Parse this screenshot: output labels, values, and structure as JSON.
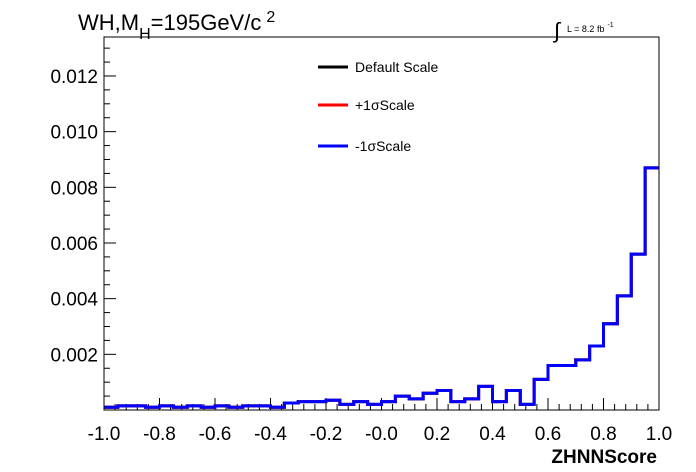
{
  "title": {
    "main": "WH,M",
    "sub": "H",
    "rest": "=195GeV/c",
    "sup": "2"
  },
  "lumi": {
    "symbol": "∫",
    "text": "L = 8.2 fb",
    "sup": "-1"
  },
  "colors": {
    "default": "#000000",
    "plus": "#ff0000",
    "minus": "#0000ff"
  },
  "chart_data": {
    "type": "line",
    "style": "step-histogram",
    "xlabel": "ZHNNScore",
    "ylabel": "",
    "xlim": [
      -1.0,
      1.0
    ],
    "ylim": [
      0.0,
      0.0134
    ],
    "x_ticks": [
      "-1.0",
      "-0.8",
      "-0.6",
      "-0.4",
      "-0.2",
      "-0.0",
      "0.2",
      "0.4",
      "0.6",
      "0.8",
      "1.0"
    ],
    "y_ticks": [
      "0.002",
      "0.004",
      "0.006",
      "0.008",
      "0.010",
      "0.012"
    ],
    "bin_edges": [
      -1.0,
      -0.95,
      -0.9,
      -0.85,
      -0.8,
      -0.75,
      -0.7,
      -0.65,
      -0.6,
      -0.55,
      -0.5,
      -0.45,
      -0.4,
      -0.35,
      -0.3,
      -0.25,
      -0.2,
      -0.15,
      -0.1,
      -0.05,
      0.0,
      0.05,
      0.1,
      0.15,
      0.2,
      0.25,
      0.3,
      0.35,
      0.4,
      0.45,
      0.5,
      0.55,
      0.6,
      0.65,
      0.7,
      0.75,
      0.8,
      0.85,
      0.9,
      0.95,
      1.0
    ],
    "legend_position": "top-center",
    "series": [
      {
        "name": "Default Scale",
        "color": "#000000",
        "values": [
          0.0001,
          0.00015,
          0.00015,
          0.0001,
          0.00015,
          0.0001,
          0.00015,
          0.0001,
          0.00015,
          0.0001,
          0.00015,
          0.00015,
          0.0001,
          0.00025,
          0.0003,
          0.0003,
          0.00035,
          0.0002,
          0.0003,
          0.0002,
          0.0003,
          0.0005,
          0.0004,
          0.0006,
          0.0007,
          0.0003,
          0.0004,
          0.00085,
          0.0003,
          0.0007,
          0.0002,
          0.0011,
          0.0016,
          0.0016,
          0.0018,
          0.0023,
          0.0031,
          0.0041,
          0.0056,
          0.0087
        ]
      },
      {
        "name": "+1σScale",
        "color": "#ff0000",
        "values": [
          0.0001,
          0.00015,
          0.00015,
          0.0001,
          0.00015,
          0.0001,
          0.00015,
          0.0001,
          0.00015,
          0.0001,
          0.00015,
          0.00015,
          0.0001,
          0.00025,
          0.0003,
          0.0003,
          0.00035,
          0.0002,
          0.0003,
          0.0002,
          0.0003,
          0.0005,
          0.0004,
          0.0006,
          0.0007,
          0.0003,
          0.0004,
          0.00085,
          0.0003,
          0.0007,
          0.0002,
          0.0011,
          0.0016,
          0.0016,
          0.0018,
          0.0023,
          0.0031,
          0.0041,
          0.0056,
          0.0087
        ]
      },
      {
        "name": "-1σScale",
        "color": "#0000ff",
        "values": [
          0.0001,
          0.00015,
          0.00015,
          0.0001,
          0.00015,
          0.0001,
          0.00015,
          0.0001,
          0.00015,
          0.0001,
          0.00015,
          0.00015,
          0.0001,
          0.00025,
          0.0003,
          0.0003,
          0.00035,
          0.0002,
          0.0003,
          0.0002,
          0.0003,
          0.0005,
          0.0004,
          0.0006,
          0.0007,
          0.0003,
          0.0004,
          0.00085,
          0.0003,
          0.0007,
          0.0002,
          0.0011,
          0.0016,
          0.0016,
          0.0018,
          0.0023,
          0.0031,
          0.0041,
          0.0056,
          0.0087
        ]
      }
    ]
  }
}
